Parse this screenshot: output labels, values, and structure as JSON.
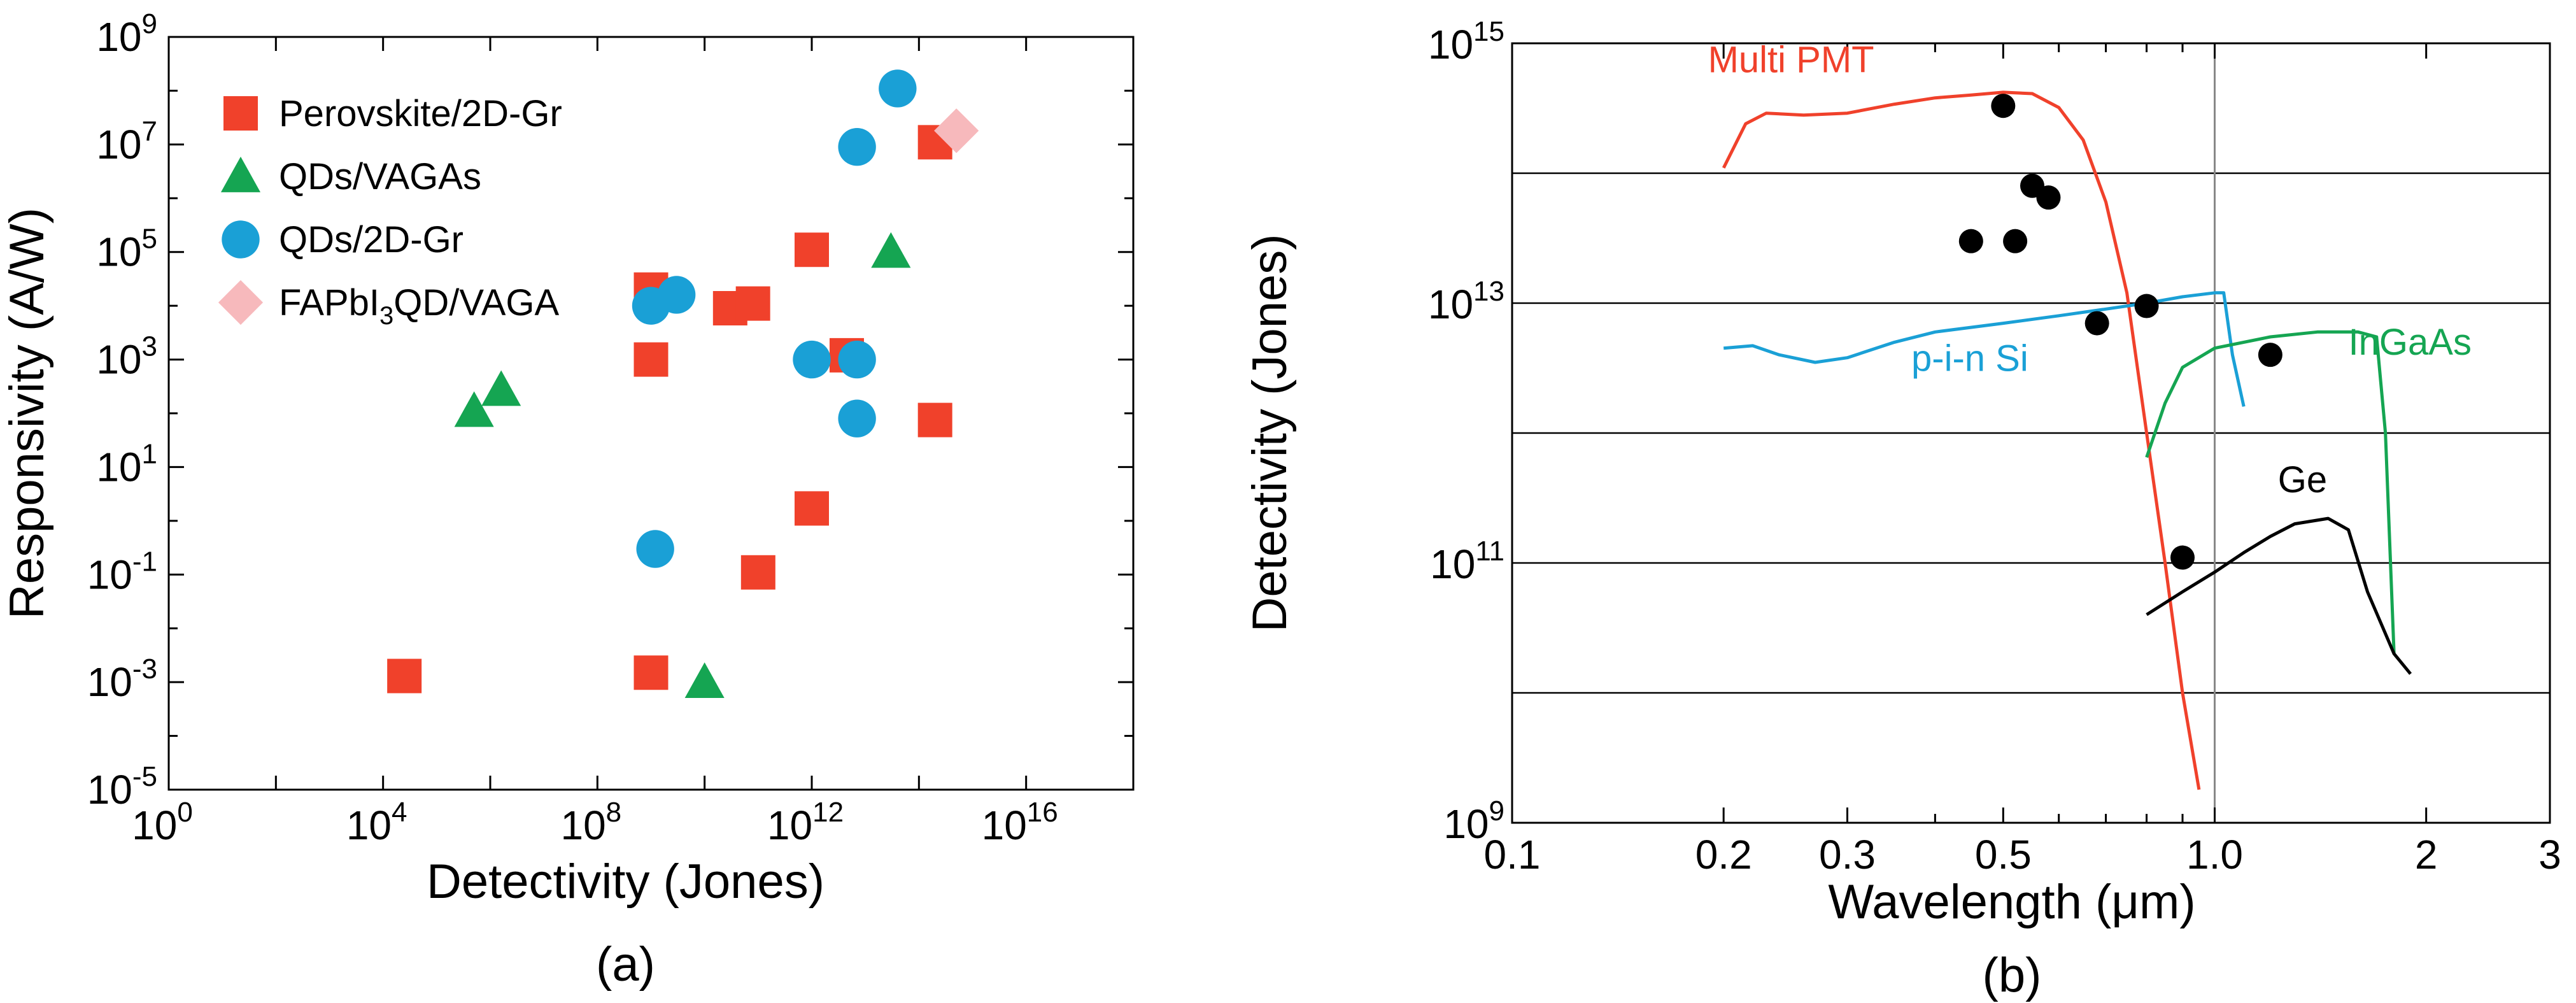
{
  "chart_data": [
    {
      "type": "scatter",
      "panel_label": "(a)",
      "xlabel": "Detectivity (Jones)",
      "ylabel": "Responsivity (A/W)",
      "x_scale": "log",
      "y_scale": "log",
      "xlim": [
        1,
        1e+18
      ],
      "ylim": [
        1e-05,
        1000000000.0
      ],
      "x_ticks": [
        {
          "value": 1,
          "base": "10",
          "exp": "0"
        },
        {
          "value": 10000,
          "base": "10",
          "exp": "4"
        },
        {
          "value": 100000000,
          "base": "10",
          "exp": "8"
        },
        {
          "value": 1000000000000.0,
          "base": "10",
          "exp": "12"
        },
        {
          "value": 1e+16,
          "base": "10",
          "exp": "16"
        }
      ],
      "y_ticks": [
        {
          "value": 1e-05,
          "base": "10",
          "exp": "-5"
        },
        {
          "value": 0.001,
          "base": "10",
          "exp": "-3"
        },
        {
          "value": 0.1,
          "base": "10",
          "exp": "-1"
        },
        {
          "value": 10,
          "base": "10",
          "exp": "1"
        },
        {
          "value": 1000,
          "base": "10",
          "exp": "3"
        },
        {
          "value": 100000,
          "base": "10",
          "exp": "5"
        },
        {
          "value": 10000000,
          "base": "10",
          "exp": "7"
        },
        {
          "value": 1000000000.0,
          "base": "10",
          "exp": "9"
        }
      ],
      "legend_position": "top-left",
      "series": [
        {
          "name": "Perovskite/2D-Gr",
          "marker": "square",
          "color": "#f0412b",
          "points": [
            [
              25000,
              0.0013
            ],
            [
              1000000000.0,
              0.0015
            ],
            [
              1000000000.0,
              1000
            ],
            [
              1000000000.0,
              20000
            ],
            [
              30000000000.0,
              9000
            ],
            [
              80000000000.0,
              11000
            ],
            [
              100000000000.0,
              0.11
            ],
            [
              1000000000000.0,
              1.7
            ],
            [
              1000000000000.0,
              110000
            ],
            [
              4500000000000.0,
              1200
            ],
            [
              200000000000000.0,
              11000000
            ],
            [
              200000000000000.0,
              75
            ]
          ]
        },
        {
          "name": "QDs/VAGAs",
          "marker": "triangle",
          "color": "#15a552",
          "points": [
            [
              500000,
              110
            ],
            [
              1600000.0,
              270
            ],
            [
              10000000000.0,
              0.001
            ],
            [
              30000000000000.0,
              100000
            ]
          ]
        },
        {
          "name": "QDs/2D-Gr",
          "marker": "circle",
          "color": "#1aa0d6",
          "points": [
            [
              1200000000.0,
              0.3
            ],
            [
              1000000000.0,
              10000
            ],
            [
              3000000000.0,
              16000
            ],
            [
              1000000000000.0,
              1000
            ],
            [
              7000000000000.0,
              1000
            ],
            [
              7000000000000.0,
              80
            ],
            [
              7000000000000.0,
              9000000
            ],
            [
              40000000000000.0,
              110000000
            ]
          ]
        },
        {
          "name": "FAPbI3QD/VAGA",
          "label_parts": {
            "pre": "FAPbI",
            "sub": "3",
            "post": "QD/VAGA"
          },
          "marker": "diamond",
          "color": "#f7b9bc",
          "points": [
            [
              500000000000000.0,
              18000000
            ]
          ]
        }
      ]
    },
    {
      "type": "line",
      "panel_label": "(b)",
      "xlabel": "Wavelength (μm)",
      "ylabel": "Detectivity (Jones)",
      "x_scale": "log",
      "y_scale": "log",
      "xlim": [
        0.1,
        3
      ],
      "ylim": [
        1000000000.0,
        1000000000000000.0
      ],
      "x_ticks": [
        {
          "value": 0.1,
          "label": "0.1"
        },
        {
          "value": 0.2,
          "label": "0.2"
        },
        {
          "value": 0.3,
          "label": "0.3"
        },
        {
          "value": 0.5,
          "label": "0.5"
        },
        {
          "value": 1.0,
          "label": "1.0"
        },
        {
          "value": 2,
          "label": "2"
        },
        {
          "value": 3,
          "label": "3"
        }
      ],
      "y_ticks": [
        {
          "value": 1000000000.0,
          "base": "10",
          "exp": "9"
        },
        {
          "value": 100000000000.0,
          "base": "10",
          "exp": "11"
        },
        {
          "value": 10000000000000.0,
          "base": "10",
          "exp": "13"
        },
        {
          "value": 1000000000000000.0,
          "base": "10",
          "exp": "15"
        }
      ],
      "horizontal_grid": [
        10000000000.0,
        100000000000.0,
        1000000000000.0,
        10000000000000.0,
        100000000000000.0
      ],
      "vertical_grid": [
        1.0
      ],
      "series": [
        {
          "name": "Multi PMT",
          "color": "#f0412b",
          "label_at": [
            0.19,
            600000000000000.0
          ],
          "points": [
            [
              0.2,
              110000000000000.0
            ],
            [
              0.215,
              240000000000000.0
            ],
            [
              0.23,
              290000000000000.0
            ],
            [
              0.26,
              280000000000000.0
            ],
            [
              0.3,
              290000000000000.0
            ],
            [
              0.35,
              340000000000000.0
            ],
            [
              0.4,
              380000000000000.0
            ],
            [
              0.45,
              400000000000000.0
            ],
            [
              0.5,
              420000000000000.0
            ],
            [
              0.55,
              410000000000000.0
            ],
            [
              0.6,
              320000000000000.0
            ],
            [
              0.65,
              180000000000000.0
            ],
            [
              0.7,
              60000000000000.0
            ],
            [
              0.75,
              12000000000000.0
            ],
            [
              0.8,
              1000000000000.0
            ],
            [
              0.85,
              100000000000.0
            ],
            [
              0.9,
              10000000000.0
            ],
            [
              0.95,
              1800000000.0
            ]
          ]
        },
        {
          "name": "p-i-n Si",
          "color": "#1aa0d6",
          "label_at": [
            0.37,
            3000000000000.0
          ],
          "points": [
            [
              0.2,
              4500000000000.0
            ],
            [
              0.22,
              4700000000000.0
            ],
            [
              0.24,
              4000000000000.0
            ],
            [
              0.27,
              3500000000000.0
            ],
            [
              0.3,
              3800000000000.0
            ],
            [
              0.35,
              5000000000000.0
            ],
            [
              0.4,
              6000000000000.0
            ],
            [
              0.5,
              7000000000000.0
            ],
            [
              0.6,
              8000000000000.0
            ],
            [
              0.7,
              9000000000000.0
            ],
            [
              0.8,
              10000000000000.0
            ],
            [
              0.9,
              11200000000000.0
            ],
            [
              1.0,
              12000000000000.0
            ],
            [
              1.03,
              12000000000000.0
            ],
            [
              1.06,
              4000000000000.0
            ],
            [
              1.1,
              1600000000000.0
            ]
          ]
        },
        {
          "name": "InGaAs",
          "color": "#15a552",
          "label_at": [
            1.55,
            4000000000000.0
          ],
          "points": [
            [
              0.8,
              650000000000.0
            ],
            [
              0.85,
              1700000000000.0
            ],
            [
              0.9,
              3200000000000.0
            ],
            [
              1.0,
              4500000000000.0
            ],
            [
              1.2,
              5500000000000.0
            ],
            [
              1.4,
              6000000000000.0
            ],
            [
              1.6,
              6000000000000.0
            ],
            [
              1.7,
              5500000000000.0
            ],
            [
              1.75,
              1000000000000.0
            ],
            [
              1.8,
              20000000000.0
            ]
          ]
        },
        {
          "name": "Ge",
          "color": "#000000",
          "label_at": [
            1.23,
            350000000000.0
          ],
          "points": [
            [
              0.8,
              40000000000.0
            ],
            [
              0.9,
              60000000000.0
            ],
            [
              1.0,
              85000000000.0
            ],
            [
              1.1,
              120000000000.0
            ],
            [
              1.2,
              160000000000.0
            ],
            [
              1.3,
              200000000000.0
            ],
            [
              1.45,
              220000000000.0
            ],
            [
              1.55,
              180000000000.0
            ],
            [
              1.65,
              60000000000.0
            ],
            [
              1.8,
              20000000000.0
            ],
            [
              1.9,
              14000000000.0
            ]
          ]
        },
        {
          "name": "",
          "type": "scatter",
          "marker": "circle",
          "color": "#000000",
          "points": [
            [
              0.45,
              30000000000000.0
            ],
            [
              0.5,
              330000000000000.0
            ],
            [
              0.52,
              30000000000000.0
            ],
            [
              0.55,
              80000000000000.0
            ],
            [
              0.58,
              65000000000000.0
            ],
            [
              0.68,
              7000000000000.0
            ],
            [
              0.8,
              9500000000000.0
            ],
            [
              0.9,
              110000000000.0
            ],
            [
              1.2,
              4000000000000.0
            ]
          ]
        }
      ]
    }
  ]
}
